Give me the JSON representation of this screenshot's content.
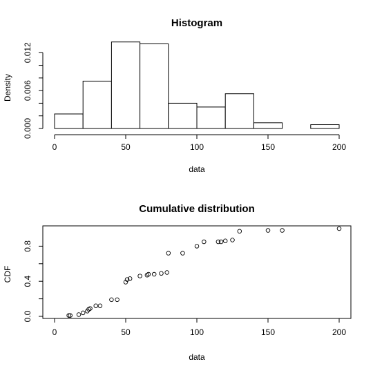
{
  "chart_data": [
    {
      "type": "bar",
      "title": "Histogram",
      "xlabel": "data",
      "ylabel": "Density",
      "bin_edges": [
        0,
        20,
        40,
        60,
        80,
        100,
        120,
        140,
        160,
        180,
        200
      ],
      "values": [
        0.0023,
        0.0075,
        0.0137,
        0.0134,
        0.004,
        0.0034,
        0.0055,
        0.0009,
        0.0,
        0.0006
      ],
      "xlim": [
        0,
        200
      ],
      "ylim": [
        0,
        0.014
      ],
      "x_ticks": [
        0,
        50,
        100,
        150,
        200
      ],
      "x_tick_labels": [
        "0",
        "50",
        "100",
        "150",
        "200"
      ],
      "y_ticks": [
        0.0,
        0.002,
        0.004,
        0.006,
        0.008,
        0.01,
        0.012
      ],
      "y_tick_labels": [
        "0.000",
        "",
        "",
        "0.006",
        "",
        "",
        "0.012"
      ],
      "grid": false
    },
    {
      "type": "scatter",
      "title": "Cumulative distribution",
      "xlabel": "data",
      "ylabel": "CDF",
      "x": [
        10,
        11,
        17,
        20,
        23,
        24,
        25,
        29,
        32,
        40,
        44,
        50,
        51,
        53,
        60,
        65,
        66,
        70,
        75,
        79,
        80,
        90,
        100,
        105,
        115,
        117,
        120,
        125,
        130,
        150,
        160,
        200
      ],
      "y": [
        0.01,
        0.01,
        0.02,
        0.04,
        0.06,
        0.08,
        0.09,
        0.12,
        0.12,
        0.19,
        0.19,
        0.39,
        0.42,
        0.43,
        0.46,
        0.47,
        0.48,
        0.48,
        0.49,
        0.5,
        0.72,
        0.72,
        0.8,
        0.85,
        0.85,
        0.85,
        0.86,
        0.87,
        0.97,
        0.98,
        0.98,
        1.0
      ],
      "xlim": [
        0,
        200
      ],
      "ylim": [
        0,
        1
      ],
      "x_ticks": [
        0,
        50,
        100,
        150,
        200
      ],
      "x_tick_labels": [
        "0",
        "50",
        "100",
        "150",
        "200"
      ],
      "y_ticks": [
        0.0,
        0.2,
        0.4,
        0.6,
        0.8
      ],
      "y_tick_labels": [
        "0.0",
        "",
        "0.4",
        "",
        "0.8"
      ],
      "grid": false
    }
  ]
}
